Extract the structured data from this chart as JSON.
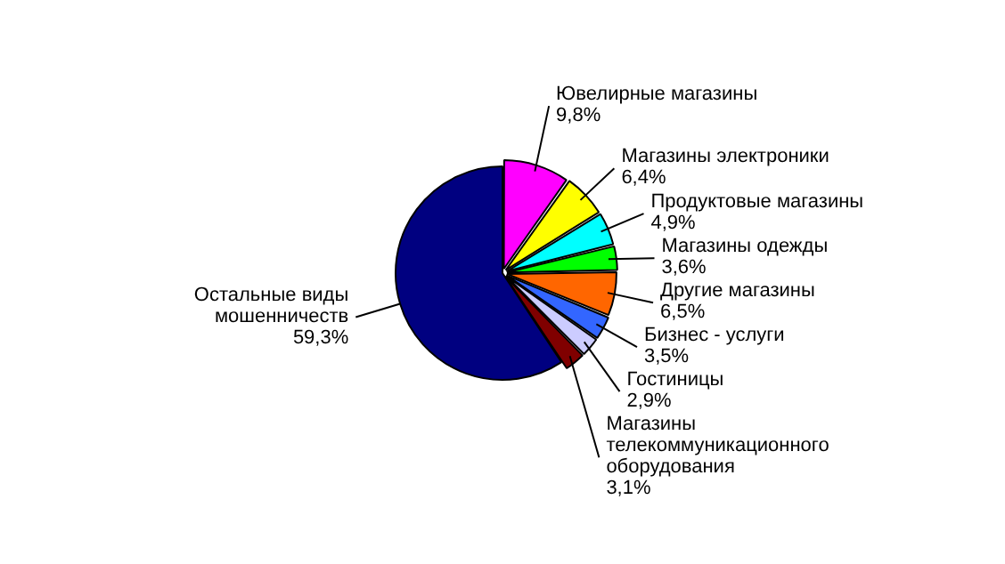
{
  "chart_data": {
    "type": "pie",
    "categories": [
      "Ювелирные магазины",
      "Магазины электроники",
      "Продуктовые магазины",
      "Магазины одежды",
      "Другие магазины",
      "Бизнес - услуги",
      "Гостиницы",
      "Магазины телекоммуникационного оборудования",
      "Остальные виды мошенничеств"
    ],
    "values": [
      9.8,
      6.4,
      4.9,
      3.6,
      6.5,
      3.5,
      2.9,
      3.1,
      59.3
    ],
    "value_labels": [
      "9,8%",
      "6,4%",
      "4,9%",
      "3,6%",
      "6,5%",
      "3,5%",
      "2,9%",
      "3,1%",
      "59,3%"
    ],
    "colors": [
      "#ff00ff",
      "#ffff00",
      "#00ffff",
      "#00ff00",
      "#ff6600",
      "#3366ff",
      "#ccccff",
      "#800000",
      "#000080"
    ],
    "legend": false
  }
}
